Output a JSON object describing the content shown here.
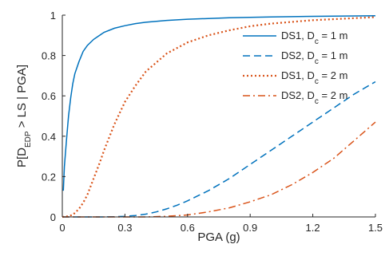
{
  "chart_data": {
    "type": "line",
    "title": "",
    "xlabel": "PGA (g)",
    "ylabel": {
      "parts": [
        {
          "text": "P[D",
          "sub": false
        },
        {
          "text": "EDP",
          "sub": true
        },
        {
          "text": " > LS | PGA]",
          "sub": false
        }
      ]
    },
    "xlim": [
      0,
      1.5
    ],
    "ylim": [
      0,
      1
    ],
    "xticks": [
      0,
      0.3,
      0.6,
      0.9,
      1.2,
      1.5
    ],
    "xtick_labels": [
      "0",
      "0.3",
      "0.6",
      "0.9",
      "1.2",
      "1.5"
    ],
    "yticks": [
      0,
      0.2,
      0.4,
      0.6,
      0.8,
      1
    ],
    "ytick_labels": [
      "0",
      "0.2",
      "0.4",
      "0.6",
      "0.8",
      "1"
    ],
    "grid": false,
    "legend_position": "upper-right",
    "series": [
      {
        "name": {
          "prefix": "DS1, D",
          "sub": "c",
          "suffix": " = 1 m"
        },
        "color": "#0072BD",
        "style": "solid",
        "x": [
          0.005,
          0.01,
          0.02,
          0.03,
          0.04,
          0.05,
          0.06,
          0.08,
          0.1,
          0.12,
          0.15,
          0.2,
          0.25,
          0.3,
          0.35,
          0.4,
          0.5,
          0.6,
          0.8,
          1.0,
          1.2,
          1.5
        ],
        "y": [
          0.13,
          0.25,
          0.38,
          0.5,
          0.59,
          0.66,
          0.71,
          0.77,
          0.82,
          0.85,
          0.88,
          0.915,
          0.935,
          0.948,
          0.958,
          0.965,
          0.974,
          0.98,
          0.987,
          0.991,
          0.994,
          0.997
        ]
      },
      {
        "name": {
          "prefix": "DS2, D",
          "sub": "c",
          "suffix": " = 1 m"
        },
        "color": "#0072BD",
        "style": "dashed",
        "x": [
          0,
          0.2,
          0.25,
          0.3,
          0.35,
          0.4,
          0.45,
          0.5,
          0.55,
          0.6,
          0.7,
          0.8,
          0.9,
          1.0,
          1.1,
          1.2,
          1.3,
          1.4,
          1.5
        ],
        "y": [
          0,
          0,
          0.001,
          0.003,
          0.007,
          0.014,
          0.025,
          0.04,
          0.058,
          0.08,
          0.13,
          0.19,
          0.26,
          0.33,
          0.4,
          0.47,
          0.54,
          0.61,
          0.67
        ]
      },
      {
        "name": {
          "prefix": "DS1, D",
          "sub": "c",
          "suffix": " = 2 m"
        },
        "color": "#D95319",
        "style": "dotted",
        "x": [
          0,
          0.02,
          0.05,
          0.08,
          0.1,
          0.12,
          0.15,
          0.18,
          0.2,
          0.25,
          0.3,
          0.35,
          0.4,
          0.5,
          0.6,
          0.7,
          0.8,
          0.9,
          1.0,
          1.2,
          1.5
        ],
        "y": [
          0,
          0.002,
          0.01,
          0.04,
          0.07,
          0.11,
          0.19,
          0.27,
          0.33,
          0.46,
          0.57,
          0.65,
          0.72,
          0.81,
          0.865,
          0.9,
          0.925,
          0.945,
          0.958,
          0.975,
          0.99
        ]
      },
      {
        "name": {
          "prefix": "DS2, D",
          "sub": "c",
          "suffix": " = 2 m"
        },
        "color": "#D95319",
        "style": "dashdot",
        "x": [
          0,
          0.4,
          0.5,
          0.6,
          0.7,
          0.8,
          0.9,
          1.0,
          1.1,
          1.2,
          1.3,
          1.4,
          1.5
        ],
        "y": [
          0,
          0,
          0.003,
          0.01,
          0.025,
          0.045,
          0.075,
          0.11,
          0.16,
          0.22,
          0.29,
          0.38,
          0.47
        ]
      }
    ]
  }
}
